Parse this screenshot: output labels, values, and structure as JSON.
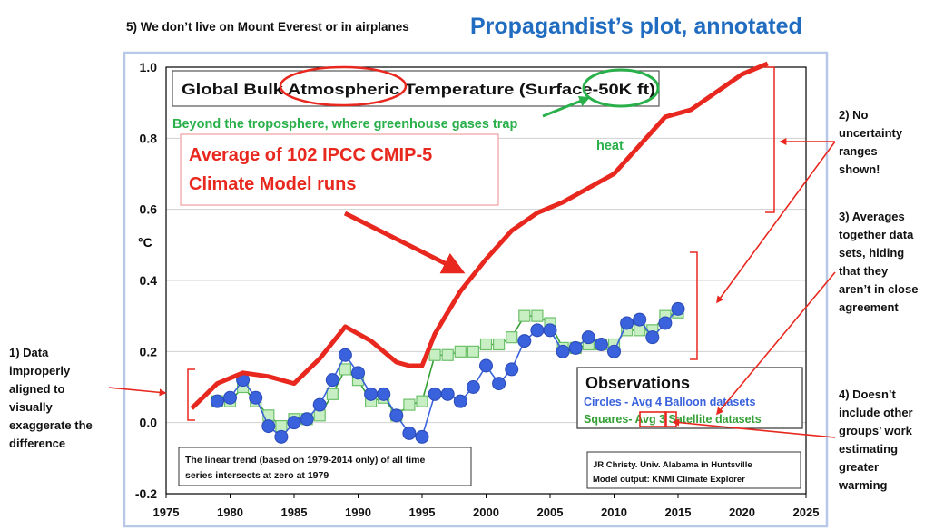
{
  "page": {
    "title": "Propagandist’s plot, annotated",
    "title_color": "#1f6cc0"
  },
  "annotations": {
    "note5": "5) We don’t live on Mount Everest or in airplanes",
    "note1": [
      "1) Data",
      "improperly",
      "aligned to",
      "visually",
      "exaggerate the",
      "difference"
    ],
    "note2": [
      "2) No",
      "uncertainty",
      "ranges",
      "shown!"
    ],
    "note3": [
      "3) Averages",
      "together data",
      "sets, hiding",
      "that they",
      "aren’t in close",
      "agreement"
    ],
    "note4": [
      "4) Doesn’t",
      "include other",
      "groups’ work",
      "estimating",
      "greater",
      "warming"
    ],
    "troposphere_line1": "Beyond the troposphere, where greenhouse gases trap",
    "troposphere_line2": "heat"
  },
  "chart_data": {
    "type": "line",
    "title": "Global Bulk Atmospheric Temperature (Surface-50K ft)",
    "ylabel": "°C",
    "xlim": [
      1975,
      2025
    ],
    "ylim": [
      -0.2,
      1.0
    ],
    "grid": true,
    "x_ticks": [
      "1975",
      "1980",
      "1985",
      "1990",
      "1995",
      "2000",
      "2005",
      "2010",
      "2015",
      "2020",
      "2025"
    ],
    "y_ticks": [
      "-0.2",
      "0.0",
      "0.2",
      "0.4",
      "0.6",
      "0.8",
      "1.0"
    ],
    "series": [
      {
        "name": "Average of 102 IPCC CMIP-5 Climate Model runs",
        "color": "#e8281e",
        "x": [
          1977,
          1979,
          1981,
          1983,
          1985,
          1987,
          1989,
          1991,
          1993,
          1994,
          1995,
          1996,
          1998,
          2000,
          2002,
          2004,
          2006,
          2008,
          2010,
          2012,
          2014,
          2016,
          2018,
          2020,
          2022
        ],
        "values": [
          0.04,
          0.11,
          0.14,
          0.13,
          0.11,
          0.18,
          0.27,
          0.23,
          0.17,
          0.16,
          0.16,
          0.25,
          0.37,
          0.46,
          0.54,
          0.59,
          0.62,
          0.66,
          0.7,
          0.78,
          0.86,
          0.88,
          0.93,
          0.98,
          1.01
        ]
      },
      {
        "name": "Circles - Avg 4 Balloon datasets",
        "color": "#3a62dc",
        "x": [
          1979,
          1980,
          1981,
          1982,
          1983,
          1984,
          1985,
          1986,
          1987,
          1988,
          1989,
          1990,
          1991,
          1992,
          1993,
          1994,
          1995,
          1996,
          1997,
          1998,
          1999,
          2000,
          2001,
          2002,
          2003,
          2004,
          2005,
          2006,
          2007,
          2008,
          2009,
          2010,
          2011,
          2012,
          2013,
          2014,
          2015
        ],
        "values": [
          0.06,
          0.07,
          0.12,
          0.07,
          -0.01,
          -0.04,
          0.0,
          0.01,
          0.05,
          0.12,
          0.19,
          0.14,
          0.08,
          0.08,
          0.02,
          -0.03,
          -0.04,
          0.08,
          0.08,
          0.06,
          0.1,
          0.16,
          0.11,
          0.15,
          0.23,
          0.26,
          0.26,
          0.2,
          0.21,
          0.24,
          0.22,
          0.2,
          0.28,
          0.29,
          0.24,
          0.28,
          0.32
        ]
      },
      {
        "name": "Squares- Avg 3 Satellite datasets",
        "color": "#35a035",
        "x": [
          1979,
          1980,
          1981,
          1982,
          1983,
          1984,
          1985,
          1986,
          1987,
          1988,
          1989,
          1990,
          1991,
          1992,
          1993,
          1994,
          1995,
          1996,
          1997,
          1998,
          1999,
          2000,
          2001,
          2002,
          2003,
          2004,
          2005,
          2006,
          2007,
          2008,
          2009,
          2010,
          2011,
          2012,
          2013,
          2014,
          2015
        ],
        "values": [
          0.06,
          0.06,
          0.1,
          0.06,
          0.02,
          -0.01,
          0.01,
          0.01,
          0.02,
          0.08,
          0.15,
          0.12,
          0.06,
          0.07,
          0.02,
          0.05,
          0.06,
          0.19,
          0.19,
          0.2,
          0.2,
          0.22,
          0.22,
          0.24,
          0.3,
          0.3,
          0.28,
          0.21,
          0.21,
          0.22,
          0.22,
          0.22,
          0.26,
          0.26,
          0.26,
          0.3,
          0.31
        ]
      }
    ],
    "legend": {
      "title": "Observations",
      "entries": [
        {
          "prefix": "Circles - Avg ",
          "num": "4",
          "suffix": " Balloon datasets",
          "color": "#3a62dc"
        },
        {
          "prefix": "Squares- Avg ",
          "num": "3",
          "suffix": " Satellite datasets",
          "color": "#35a035"
        }
      ],
      "placement": "lower-right"
    },
    "model_label": [
      "Average of 102 IPCC CMIP-5",
      "Climate Model runs"
    ],
    "trend_note": [
      "The linear trend (based on 1979-2014 only) of all time",
      "series intersects at zero at 1979"
    ],
    "credit": [
      "JR Christy. Univ. Alabama in Huntsville",
      "Model output: KNMI Climate Explorer"
    ]
  }
}
